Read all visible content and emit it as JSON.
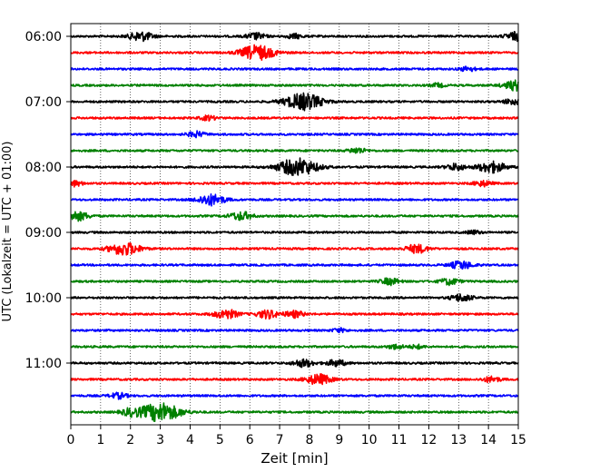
{
  "chart_data": {
    "type": "line",
    "title": "",
    "xlabel": "Zeit  [min]",
    "ylabel": "UTC (Lokalzeit = UTC + 01:00)",
    "xlim": [
      0,
      15
    ],
    "x_ticks": [
      0,
      1,
      2,
      3,
      4,
      5,
      6,
      7,
      8,
      9,
      10,
      11,
      12,
      13,
      14,
      15
    ],
    "x_tick_labels": [
      "0",
      "1",
      "2",
      "3",
      "4",
      "5",
      "6",
      "7",
      "8",
      "9",
      "10",
      "11",
      "12",
      "13",
      "14",
      "15"
    ],
    "y_tick_labels": [
      {
        "label": "06:00",
        "trace_index": 0
      },
      {
        "label": "07:00",
        "trace_index": 4
      },
      {
        "label": "08:00",
        "trace_index": 8
      },
      {
        "label": "09:00",
        "trace_index": 12
      },
      {
        "label": "10:00",
        "trace_index": 16
      },
      {
        "label": "11:00",
        "trace_index": 20
      }
    ],
    "grid": "vertical dotted at each minute",
    "color_cycle": [
      "#000000",
      "#ff0000",
      "#0000ff",
      "#008000"
    ],
    "series": [
      {
        "name": "06:00",
        "color": "#000000",
        "events": [
          {
            "t": 2.35,
            "amp": 0.5
          },
          {
            "t": 6.2,
            "amp": 0.35
          },
          {
            "t": 7.5,
            "amp": 0.25
          },
          {
            "t": 14.95,
            "amp": 0.45
          }
        ]
      },
      {
        "name": "06:15",
        "color": "#ff0000",
        "events": [
          {
            "t": 6.25,
            "amp": 0.8
          }
        ]
      },
      {
        "name": "06:30",
        "color": "#0000ff",
        "events": [
          {
            "t": 13.3,
            "amp": 0.25
          }
        ]
      },
      {
        "name": "06:45",
        "color": "#008000",
        "events": [
          {
            "t": 12.3,
            "amp": 0.2
          },
          {
            "t": 14.95,
            "amp": 0.55
          }
        ]
      },
      {
        "name": "07:00",
        "color": "#000000",
        "events": [
          {
            "t": 7.8,
            "amp": 0.9
          },
          {
            "t": 14.8,
            "amp": 0.3
          }
        ]
      },
      {
        "name": "07:15",
        "color": "#ff0000",
        "events": [
          {
            "t": 4.6,
            "amp": 0.25
          }
        ]
      },
      {
        "name": "07:30",
        "color": "#0000ff",
        "events": [
          {
            "t": 4.2,
            "amp": 0.3
          }
        ]
      },
      {
        "name": "07:45",
        "color": "#008000",
        "events": [
          {
            "t": 9.6,
            "amp": 0.3
          }
        ]
      },
      {
        "name": "08:00",
        "color": "#000000",
        "events": [
          {
            "t": 7.6,
            "amp": 0.95
          },
          {
            "t": 14.1,
            "amp": 0.6
          },
          {
            "t": 12.9,
            "amp": 0.35
          }
        ]
      },
      {
        "name": "08:15",
        "color": "#ff0000",
        "events": [
          {
            "t": 0.1,
            "amp": 0.3
          },
          {
            "t": 13.8,
            "amp": 0.3
          }
        ]
      },
      {
        "name": "08:30",
        "color": "#0000ff",
        "events": [
          {
            "t": 4.7,
            "amp": 0.6
          }
        ]
      },
      {
        "name": "08:45",
        "color": "#008000",
        "events": [
          {
            "t": 0.2,
            "amp": 0.5
          },
          {
            "t": 5.7,
            "amp": 0.45
          }
        ]
      },
      {
        "name": "09:00",
        "color": "#000000",
        "events": [
          {
            "t": 13.5,
            "amp": 0.2
          }
        ]
      },
      {
        "name": "09:15",
        "color": "#ff0000",
        "events": [
          {
            "t": 1.8,
            "amp": 0.7
          },
          {
            "t": 11.6,
            "amp": 0.45
          }
        ]
      },
      {
        "name": "09:30",
        "color": "#0000ff",
        "events": [
          {
            "t": 13.1,
            "amp": 0.45
          }
        ]
      },
      {
        "name": "09:45",
        "color": "#008000",
        "events": [
          {
            "t": 10.7,
            "amp": 0.35
          },
          {
            "t": 12.7,
            "amp": 0.35
          }
        ]
      },
      {
        "name": "10:00",
        "color": "#000000",
        "events": [
          {
            "t": 13.1,
            "amp": 0.4
          }
        ]
      },
      {
        "name": "10:15",
        "color": "#ff0000",
        "events": [
          {
            "t": 5.2,
            "amp": 0.5
          },
          {
            "t": 6.6,
            "amp": 0.45
          },
          {
            "t": 7.5,
            "amp": 0.35
          }
        ]
      },
      {
        "name": "10:30",
        "color": "#0000ff",
        "events": [
          {
            "t": 9.0,
            "amp": 0.2
          }
        ]
      },
      {
        "name": "10:45",
        "color": "#008000",
        "events": [
          {
            "t": 10.9,
            "amp": 0.25
          },
          {
            "t": 11.6,
            "amp": 0.2
          }
        ]
      },
      {
        "name": "11:00",
        "color": "#000000",
        "events": [
          {
            "t": 7.8,
            "amp": 0.4
          },
          {
            "t": 8.9,
            "amp": 0.35
          }
        ]
      },
      {
        "name": "11:15",
        "color": "#ff0000",
        "events": [
          {
            "t": 8.3,
            "amp": 0.55
          },
          {
            "t": 14.1,
            "amp": 0.3
          }
        ]
      },
      {
        "name": "11:30",
        "color": "#0000ff",
        "events": [
          {
            "t": 1.6,
            "amp": 0.3
          }
        ]
      },
      {
        "name": "11:45",
        "color": "#008000",
        "events": [
          {
            "t": 3.0,
            "amp": 1.0
          },
          {
            "t": 2.0,
            "amp": 0.35
          }
        ]
      }
    ]
  }
}
